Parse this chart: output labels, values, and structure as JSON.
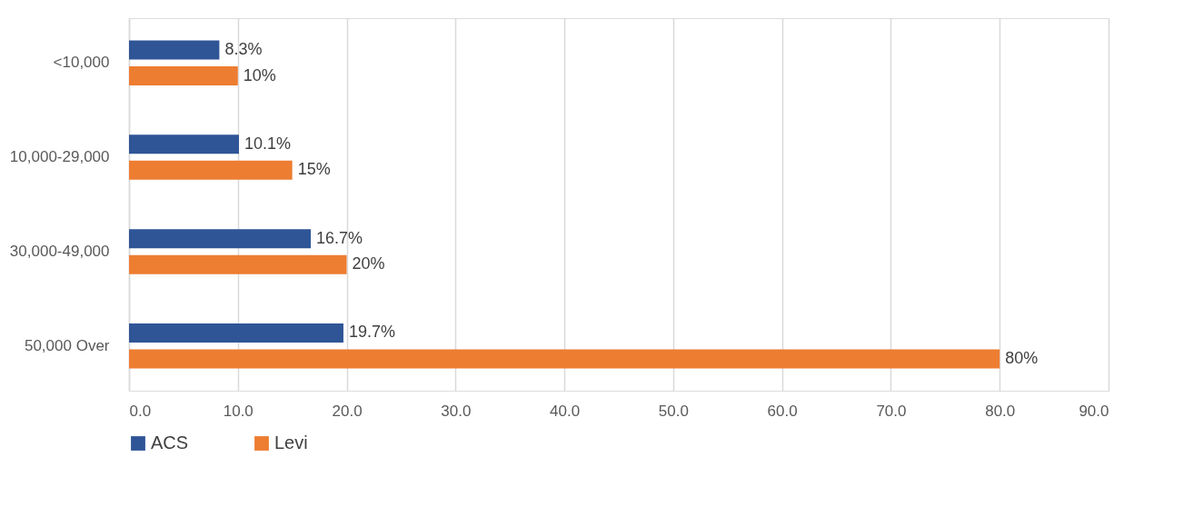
{
  "chart_data": {
    "type": "bar",
    "orientation": "horizontal",
    "categories": [
      "<10,000",
      "10,000-29,000",
      "30,000-49,000",
      "50,000 Over"
    ],
    "series": [
      {
        "name": "ACS",
        "color": "#2f5597",
        "values": [
          8.3,
          10.1,
          16.7,
          19.7
        ],
        "value_labels": [
          "8.3%",
          "10.1%",
          "16.7%",
          "19.7%"
        ]
      },
      {
        "name": "Levi",
        "color": "#ed7d31",
        "values": [
          10,
          15,
          20,
          80
        ],
        "value_labels": [
          "10%",
          "15%",
          "20%",
          "80%"
        ]
      }
    ],
    "xlim": [
      0,
      90
    ],
    "xticks": [
      {
        "value": 0,
        "label": "0.0"
      },
      {
        "value": 10,
        "label": "10.0"
      },
      {
        "value": 20,
        "label": "20.0"
      },
      {
        "value": 30,
        "label": "30.0"
      },
      {
        "value": 40,
        "label": "40.0"
      },
      {
        "value": 50,
        "label": "50.0"
      },
      {
        "value": 60,
        "label": "60.0"
      },
      {
        "value": 70,
        "label": "70.0"
      },
      {
        "value": 80,
        "label": "80.0"
      },
      {
        "value": 90,
        "label": "90.0"
      }
    ],
    "grid": "x",
    "legend": "bottom"
  }
}
